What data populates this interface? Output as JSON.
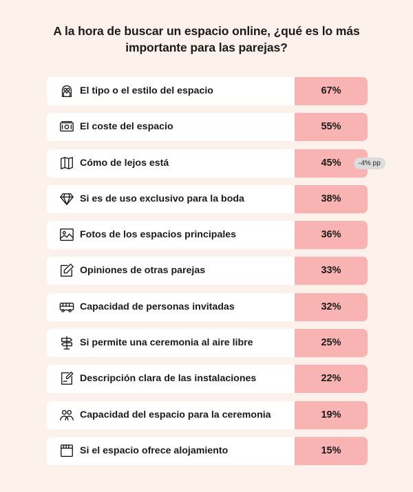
{
  "chart_data": {
    "type": "bar",
    "title": "A la hora de buscar un espacio online, ¿qué es lo más importante para las parejas?",
    "categories": [
      "El tipo o el estilo del espacio",
      "El coste del espacio",
      "Cómo de lejos está",
      "Si es de uso exclusivo para la boda",
      "Fotos de los espacios principales",
      "Opiniones de otras parejas",
      "Capacidad de personas invitadas",
      "Si permite una ceremonia al aire libre",
      "Descripción clara de las instalaciones",
      "Capacidad del espacio para la ceremonia",
      "Si el espacio ofrece alojamiento"
    ],
    "values": [
      67,
      55,
      45,
      38,
      36,
      33,
      32,
      25,
      22,
      19,
      15
    ],
    "value_labels": [
      "67%",
      "55%",
      "45%",
      "38%",
      "36%",
      "33%",
      "32%",
      "25%",
      "22%",
      "19%",
      "15%"
    ],
    "icons": [
      "couple-icon",
      "money-icon",
      "map-icon",
      "diamond-icon",
      "photo-icon",
      "edit-icon",
      "bus-icon",
      "signpost-icon",
      "document-icon",
      "people-icon",
      "calendar-icon"
    ],
    "annotation": {
      "category": "Cómo de lejos está",
      "text": "-4% pp"
    },
    "colors": {
      "value_cell": "#f9b3b3",
      "background": "#fdf1ec",
      "badge": "#dcdcdc"
    }
  }
}
